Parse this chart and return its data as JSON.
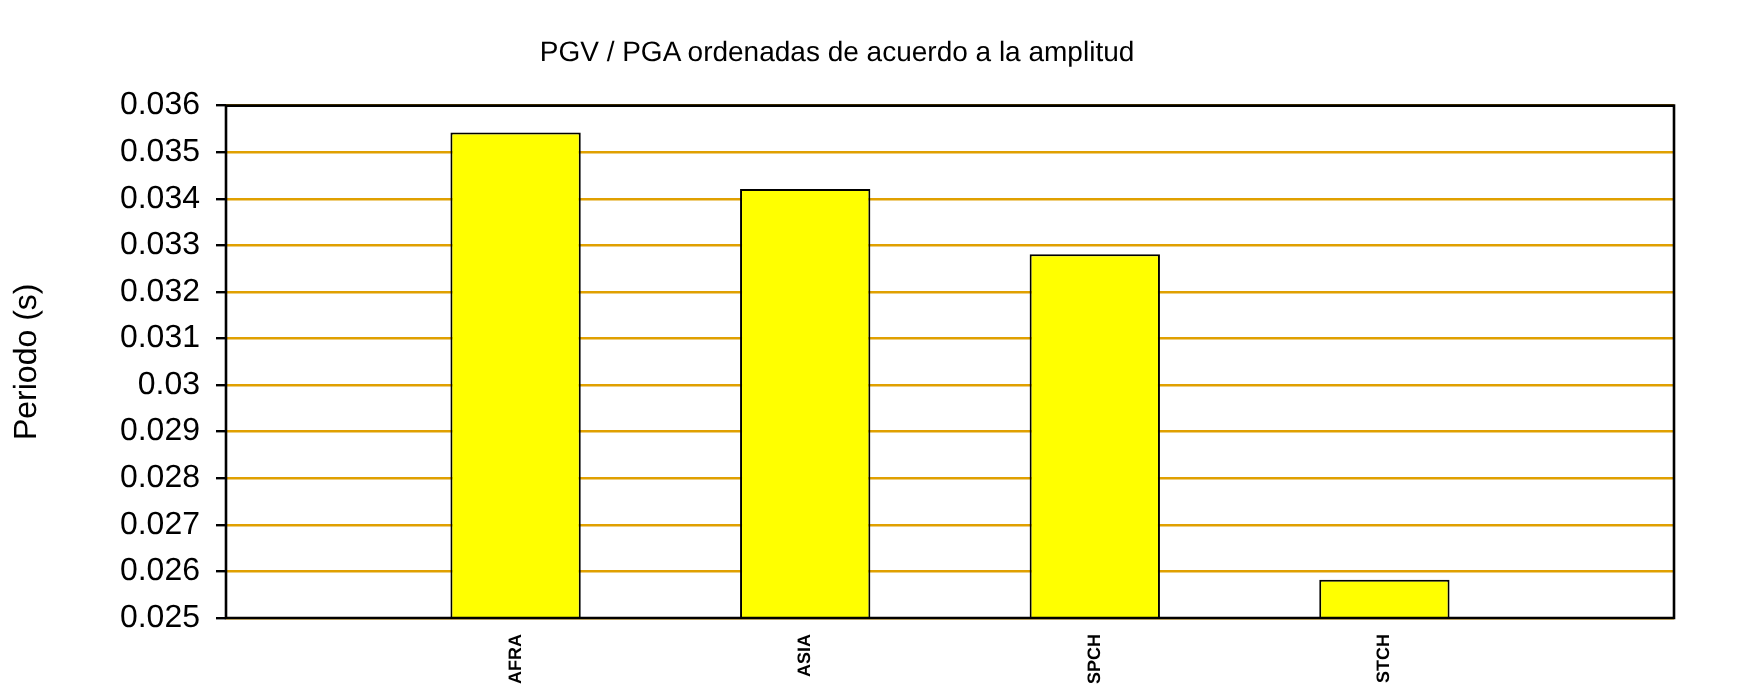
{
  "chart_data": {
    "type": "bar",
    "title": "PGV / PGA ordenadas de acuerdo a la amplitud",
    "ylabel": "Periodo (s)",
    "categories": [
      null,
      "AFRA",
      "ASIA",
      "SPCH",
      "STCH",
      null
    ],
    "values": [
      null,
      0.03542,
      0.03421,
      0.03281,
      0.02582,
      null
    ],
    "color": "#ffff00",
    "ylim": [
      0.025,
      0.036
    ],
    "yticks": [
      0.025,
      0.026,
      0.027,
      0.028,
      0.029,
      0.03,
      0.031,
      0.032,
      0.033,
      0.034,
      0.035,
      0.036
    ],
    "grid": "y",
    "legend": false
  }
}
